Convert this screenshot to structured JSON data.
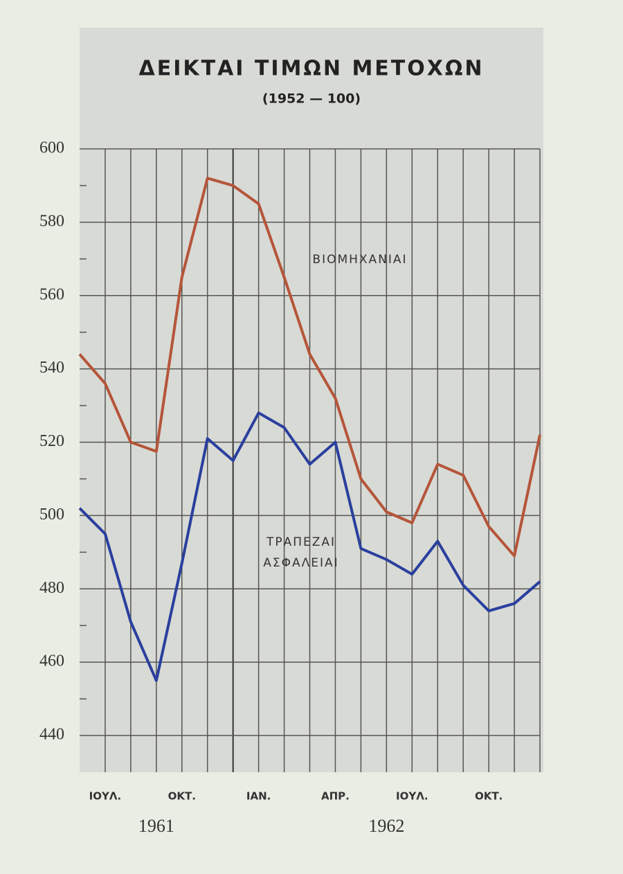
{
  "chart_data": {
    "type": "line",
    "title": "ΔΕΙΚΤΑΙ ΤΙΜΩΝ ΜΕΤΟΧΩΝ",
    "subtitle": "(1952 — 100)",
    "categories": [
      null,
      "ΙΟΥΛ.",
      null,
      null,
      "ΟΚΤ.",
      null,
      null,
      "ΙΑΝ.",
      null,
      null,
      "ΑΠΡ.",
      null,
      null,
      "ΙΟΥΛ.",
      null,
      null,
      "ΟΚΤ.",
      null,
      null
    ],
    "years": [
      {
        "label": "1961",
        "index": 3
      },
      {
        "label": "1962",
        "index": 12
      }
    ],
    "series": [
      {
        "name": "ΒΙΟΜΗΧΑΝΙΑΙ",
        "color": "#b5553a",
        "values": [
          544,
          536,
          520,
          517.5,
          565,
          592,
          590,
          585,
          565,
          544,
          532,
          510,
          501,
          498,
          514,
          511,
          497,
          489,
          522
        ]
      },
      {
        "name": "ΤΡΑΠΕΖΑΙ ΑΣΦΑΛΕΙΑΙ",
        "color": "#2a3f9e",
        "values": [
          502,
          495,
          471,
          455,
          487,
          521,
          515,
          528,
          524,
          514,
          520,
          491,
          488,
          484,
          493,
          481,
          474,
          476,
          482
        ]
      }
    ],
    "ylim": [
      430,
      600
    ],
    "yticks": [
      440,
      460,
      480,
      500,
      520,
      540,
      560,
      580,
      600
    ],
    "minor_yticks": [
      450,
      470,
      490,
      510,
      530,
      550,
      570,
      590
    ],
    "grid": true
  }
}
